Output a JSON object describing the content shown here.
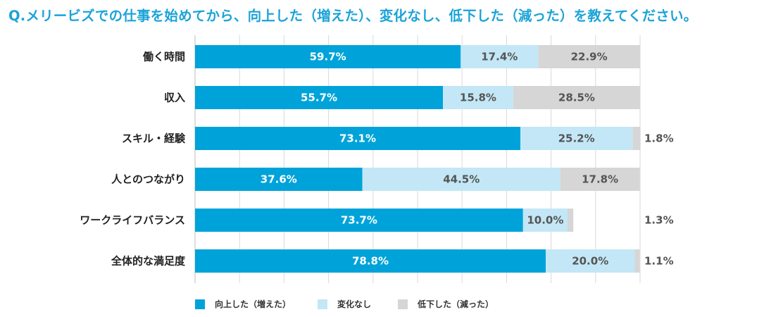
{
  "chart_data": {
    "type": "bar",
    "orientation": "horizontal",
    "stacked": true,
    "title": "Q.メリービズでの仕事を始めてから、向上した（増えた）、変化なし、低下した（減った）を教えてください。",
    "categories": [
      "働く時間",
      "収入",
      "スキル・経験",
      "人とのつながり",
      "ワークライフバランス",
      "全体的な満足度"
    ],
    "series": [
      {
        "name": "向上した（増えた）",
        "color": "#00a3d9",
        "label_color": "#ffffff",
        "values": [
          59.7,
          55.7,
          73.1,
          37.6,
          73.7,
          78.8
        ]
      },
      {
        "name": "変化なし",
        "color": "#c3e7f6",
        "label_color": "#555555",
        "values": [
          17.4,
          15.8,
          25.2,
          44.5,
          10.0,
          20.0
        ]
      },
      {
        "name": "低下した（減った）",
        "color": "#d6d6d6",
        "label_color": "#555555",
        "values": [
          22.9,
          28.5,
          1.8,
          17.8,
          1.3,
          1.1
        ]
      }
    ],
    "value_suffix": "%",
    "xlim": [
      0,
      100
    ],
    "grid": true,
    "legend_position": "bottom"
  }
}
